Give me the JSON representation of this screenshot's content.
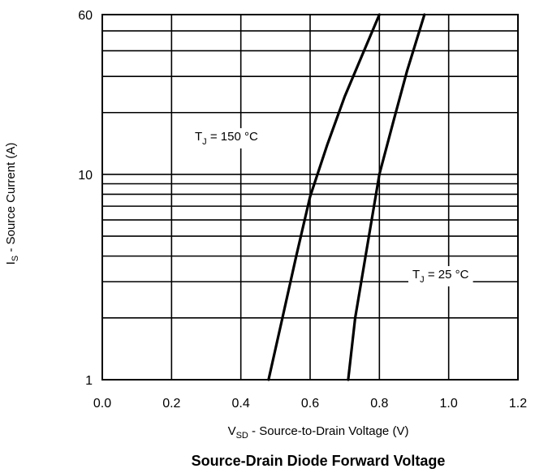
{
  "chart_data": {
    "type": "line",
    "title": "Source-Drain Diode Forward Voltage",
    "xlabel": {
      "sym": "V",
      "sub": "SD",
      "rest": " - Source-to-Drain Voltage (V)"
    },
    "ylabel": {
      "sym": "I",
      "sub": "S",
      "rest": " - Source Current (A)"
    },
    "x_scale": "linear",
    "y_scale": "log",
    "xlim": [
      0.0,
      1.2
    ],
    "ylim": [
      1,
      60
    ],
    "x_ticks": [
      0.0,
      0.2,
      0.4,
      0.6,
      0.8,
      1.0,
      1.2
    ],
    "x_tick_labels": [
      "0.0",
      "0.2",
      "0.4",
      "0.6",
      "0.8",
      "1.0",
      "1.2"
    ],
    "y_tick_labels": [
      "1",
      "10",
      "60"
    ],
    "y_tick_values": [
      1,
      10,
      60
    ],
    "grid": true,
    "series": [
      {
        "name": "T_J = 150 °C",
        "label": {
          "sym": "T",
          "sub": "J",
          "rest": " = 150 °C"
        },
        "x": [
          0.48,
          0.52,
          0.56,
          0.6,
          0.65,
          0.7,
          0.75,
          0.8
        ],
        "y": [
          1,
          2,
          4,
          7.8,
          14,
          24,
          38,
          60
        ]
      },
      {
        "name": "T_J = 25 °C",
        "label": {
          "sym": "T",
          "sub": "J",
          "rest": " = 25 °C"
        },
        "x": [
          0.71,
          0.73,
          0.76,
          0.8,
          0.84,
          0.88,
          0.93
        ],
        "y": [
          1,
          2,
          4,
          10,
          18,
          32,
          60
        ]
      }
    ]
  }
}
